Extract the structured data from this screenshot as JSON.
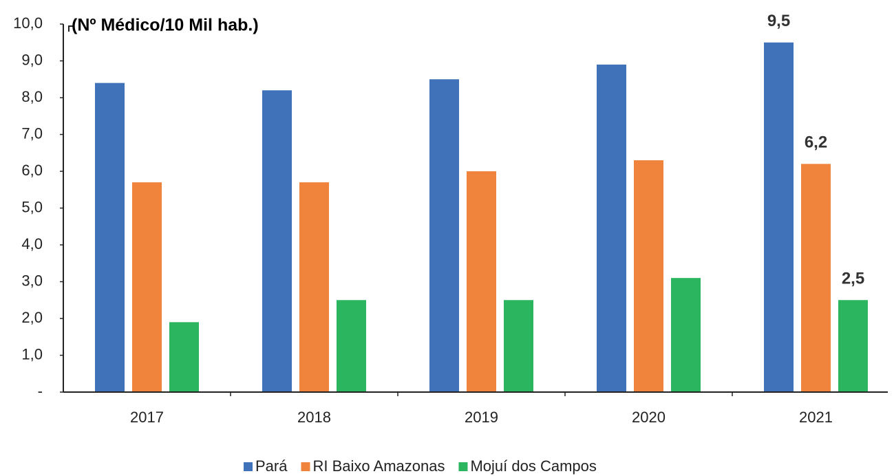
{
  "chart_data": {
    "type": "bar",
    "title": "(Nº Médico/10 Mil hab.)",
    "categories": [
      "2017",
      "2018",
      "2019",
      "2020",
      "2021"
    ],
    "series": [
      {
        "name": "Pará",
        "color": "#3f72b8",
        "values": [
          8.4,
          8.2,
          8.5,
          8.9,
          9.5
        ],
        "value_labels": [
          null,
          null,
          null,
          null,
          "9,5"
        ]
      },
      {
        "name": "RI Baixo Amazonas",
        "color": "#f0843c",
        "values": [
          5.7,
          5.7,
          6.0,
          6.3,
          6.2
        ],
        "value_labels": [
          null,
          null,
          null,
          null,
          "6,2"
        ]
      },
      {
        "name": "Mojuí dos Campos",
        "color": "#2bb55e",
        "values": [
          1.9,
          2.5,
          2.5,
          3.1,
          2.5
        ],
        "value_labels": [
          null,
          null,
          null,
          null,
          "2,5"
        ]
      }
    ],
    "ylim": [
      0,
      10
    ],
    "yticks": [
      {
        "value": 0,
        "label": "-"
      },
      {
        "value": 1,
        "label": "1,0"
      },
      {
        "value": 2,
        "label": "2,0"
      },
      {
        "value": 3,
        "label": "3,0"
      },
      {
        "value": 4,
        "label": "4,0"
      },
      {
        "value": 5,
        "label": "5,0"
      },
      {
        "value": 6,
        "label": "6,0"
      },
      {
        "value": 7,
        "label": "7,0"
      },
      {
        "value": 8,
        "label": "8,0"
      },
      {
        "value": 9,
        "label": "9,0"
      },
      {
        "value": 10,
        "label": "10,0"
      }
    ],
    "grid": false,
    "legend": "bottom"
  }
}
